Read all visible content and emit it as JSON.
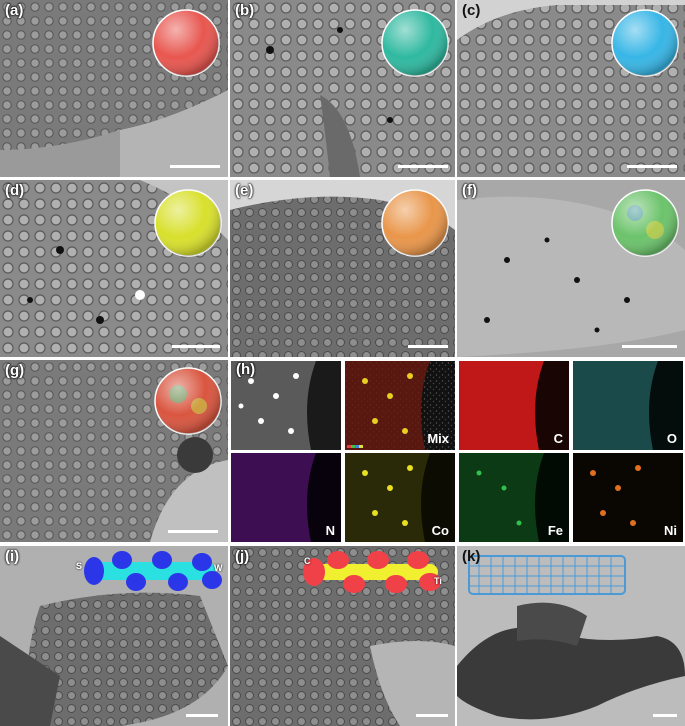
{
  "panels": {
    "a": {
      "label": "(a)",
      "sphere_color": "#e8564f"
    },
    "b": {
      "label": "(b)",
      "sphere_color": "#2fb9a0"
    },
    "c": {
      "label": "(c)",
      "sphere_color": "#37b6e6"
    },
    "d": {
      "label": "(d)",
      "sphere_color": "#d8e02c"
    },
    "e": {
      "label": "(e)",
      "sphere_color": "#e9964a"
    },
    "f": {
      "label": "(f)",
      "sphere_color": "#6cc36b"
    },
    "g": {
      "label": "(g)",
      "sphere_color": "#d9553f"
    },
    "h": {
      "label": "(h)"
    },
    "i": {
      "label": "(i)",
      "annot_left": "S",
      "annot_right": "W"
    },
    "j": {
      "label": "(j)",
      "annot_left": "C",
      "annot_right": "Ti"
    },
    "k": {
      "label": "(k)",
      "tube_color": "#4a9ad8"
    }
  },
  "eds_maps": [
    {
      "label": "",
      "color": "#ffffff"
    },
    {
      "label": "Mix",
      "color": "#c8a020"
    },
    {
      "label": "C",
      "color": "#d42020"
    },
    {
      "label": "O",
      "color": "#30a0a0"
    },
    {
      "label": "N",
      "color": "#a020c0"
    },
    {
      "label": "Co",
      "color": "#e0e020"
    },
    {
      "label": "Fe",
      "color": "#20b040"
    },
    {
      "label": "Ni",
      "color": "#e07020"
    }
  ],
  "colors": {
    "tem_base": "#8c8c8c",
    "tem_dark": "#3c3c3c",
    "tem_light": "#c8c8c8"
  }
}
